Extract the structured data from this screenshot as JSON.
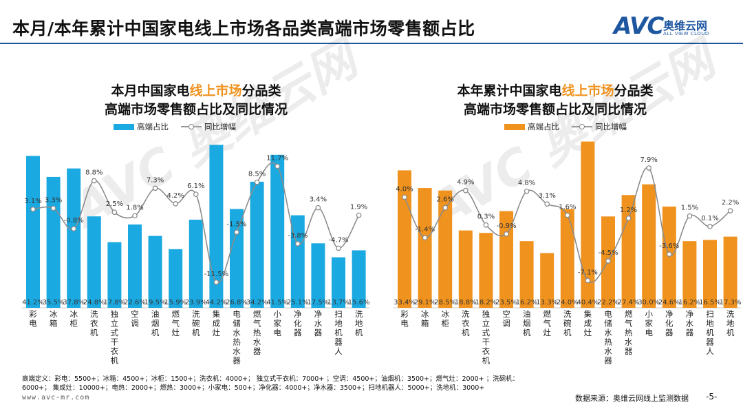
{
  "header": {
    "title": "本月/本年累计中国家电线上市场各品类高端市场零售额占比",
    "brand_logo": "AVC",
    "brand_cn": "奥维云网",
    "brand_en": "ALL VIEW CLOUD"
  },
  "charts": [
    {
      "title_prefix": "本月中国家电",
      "title_highlight": "线上市场",
      "title_suffix": "分品类",
      "title_line2": "高端市场零售额占比及同比情况",
      "legend_bar": "高端占比",
      "legend_line": "同比增幅",
      "color": "#1aa9e0"
    },
    {
      "title_prefix": "本年累计中国家电",
      "title_highlight": "线上市场",
      "title_suffix": "分品类",
      "title_line2": "高端市场零售额占比及同比情况",
      "legend_bar": "高端占比",
      "legend_line": "同比增幅",
      "color": "#f0921e"
    }
  ],
  "chart_data": [
    {
      "type": "bar+line",
      "title": "本月中国家电线上市场分品类 高端市场零售额占比及同比情况",
      "categories": [
        "彩电",
        "冰箱",
        "冰柜",
        "洗衣机",
        "独立式干衣机",
        "空调",
        "油烟机",
        "燃气灶",
        "洗碗机",
        "集成灶",
        "电储水热水器",
        "燃气热水器",
        "小家电",
        "净化器",
        "净水器",
        "扫地机器人",
        "洗地机"
      ],
      "series": [
        {
          "name": "高端占比",
          "type": "bar",
          "values": [
            41.2,
            35.5,
            37.8,
            24.8,
            17.8,
            22.6,
            19.5,
            15.9,
            23.9,
            44.2,
            26.8,
            34.2,
            41.5,
            25.1,
            17.5,
            13.7,
            15.6
          ],
          "labels": [
            "41.2%",
            "35.5%",
            "37.8%",
            "24.8%",
            "17.8%",
            "22.6%",
            "19.5%",
            "15.9%",
            "23.9%",
            "44.2%",
            "26.8%",
            "34.2%",
            "41.5%",
            "25.1%",
            "17.5%",
            "13.7%",
            "15.6%"
          ]
        },
        {
          "name": "同比增幅",
          "type": "line",
          "values": [
            3.1,
            3.3,
            -0.8,
            8.8,
            2.5,
            1.8,
            7.3,
            4.2,
            6.1,
            -11.5,
            -1.5,
            8.5,
            11.7,
            -3.8,
            3.4,
            -4.7,
            1.9
          ],
          "labels": [
            "3.1%",
            "3.3%",
            "-0.8%",
            "8.8%",
            "2.5%",
            "1.8%",
            "7.3%",
            "4.2%",
            "6.1%",
            "-11.5%",
            "-1.5%",
            "8.5%",
            "11.7%",
            "-3.8%",
            "3.4%",
            "-4.7%",
            "1.9%"
          ]
        }
      ],
      "bar_ylim": [
        0,
        48
      ],
      "line_ylim": [
        -14,
        13
      ]
    },
    {
      "type": "bar+line",
      "title": "本年累计中国家电线上市场分品类 高端市场零售额占比及同比情况",
      "categories": [
        "彩电",
        "冰箱",
        "冰柜",
        "洗衣机",
        "独立式干衣机",
        "空调",
        "油烟机",
        "燃气灶",
        "洗碗机",
        "集成灶",
        "电储水热水器",
        "燃气热水器",
        "小家电",
        "净化器",
        "净水器",
        "扫地机器人",
        "洗地机"
      ],
      "series": [
        {
          "name": "高端占比",
          "type": "bar",
          "values": [
            33.4,
            29.1,
            28.5,
            18.8,
            18.2,
            23.5,
            16.2,
            13.3,
            24.0,
            40.4,
            22.2,
            27.4,
            30.0,
            24.6,
            16.2,
            16.5,
            17.3
          ],
          "labels": [
            "33.4%",
            "29.1%",
            "28.5%",
            "18.8%",
            "18.2%",
            "23.5%",
            "16.2%",
            "13.3%",
            "24.0%",
            "40.4%",
            "22.2%",
            "27.4%",
            "30.0%",
            "24.6%",
            "16.2%",
            "16.5%",
            "17.3%"
          ]
        },
        {
          "name": "同比增幅",
          "type": "line",
          "values": [
            4.0,
            -1.4,
            2.6,
            4.9,
            0.3,
            -0.9,
            4.8,
            3.1,
            1.6,
            -7.1,
            -4.5,
            1.2,
            7.9,
            -3.6,
            1.5,
            0.1,
            2.2
          ],
          "labels": [
            "4.0%",
            "-1.4%",
            "2.6%",
            "4.9%",
            "0.3%",
            "-0.9%",
            "4.8%",
            "3.1%",
            "1.6%",
            "-7.1%",
            "-4.5%",
            "1.2%",
            "7.9%",
            "-3.6%",
            "1.5%",
            "0.1%",
            "2.2%"
          ]
        }
      ],
      "bar_ylim": [
        0,
        43
      ],
      "line_ylim": [
        -9,
        9
      ]
    }
  ],
  "footer": {
    "definition_line1": "高端定义：彩电：5500+；冰箱：4500+；冰柜：1500+；洗衣机：4000+；  独立式干衣机：7000+ ；空调：4500+；油烟机：3500+；燃气灶：2000+ ；洗碗机：",
    "definition_line2": "6000+；  集成灶：10000+；电热：2000+；燃热：3000+；小家电：500+；净化器：4000+；净水器：3500+；扫地机器人：5000+；洗地机：3000+",
    "url": "www.avc-mr.com",
    "source": "数据来源：奥维云网线上监测数据",
    "page": "-5-"
  }
}
